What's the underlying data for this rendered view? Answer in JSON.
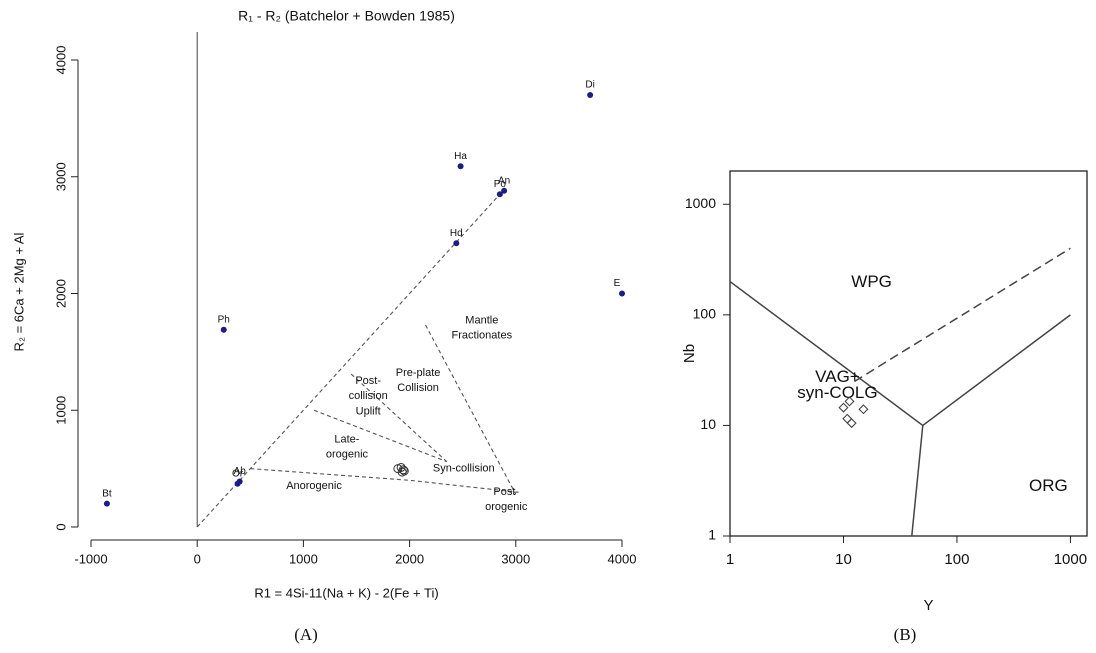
{
  "chart_data": [
    {
      "type": "scatter",
      "title": "R₁ - R₂ (Batchelor + Bowden 1985)",
      "xlabel": "R1 = 4Si-11(Na + K) - 2(Fe + Ti)",
      "ylabel": "R₂ = 6Ca + 2Mg + Al",
      "caption": "(A)",
      "xlim": [
        -1000,
        4000
      ],
      "ylim": [
        0,
        4000
      ],
      "xticks": [
        -1000,
        0,
        1000,
        2000,
        3000,
        4000
      ],
      "yticks": [
        0,
        1000,
        2000,
        3000,
        4000
      ],
      "xline": 0,
      "points": {
        "color": "#1c1c8a",
        "labels": [
          "Bt",
          "Ph",
          "Ab",
          "Or",
          "Hd",
          "Ha",
          "Po",
          "An",
          "Di",
          "E"
        ],
        "x": [
          -850,
          250,
          400,
          380,
          2440,
          2480,
          2850,
          2890,
          3700,
          4000
        ],
        "y": [
          200,
          1690,
          390,
          370,
          2430,
          3090,
          2850,
          2880,
          3700,
          2000
        ]
      },
      "samples": {
        "x": [
          1890,
          1920,
          1940,
          1950,
          1930
        ],
        "y": [
          500,
          510,
          490,
          480,
          470
        ]
      },
      "lines": [
        {
          "x": [
            0,
            2850
          ],
          "y": [
            0,
            2850
          ]
        },
        {
          "x": [
            500,
            2000,
            3000
          ],
          "y": [
            500,
            400,
            300
          ]
        },
        {
          "x": [
            1100,
            2350
          ],
          "y": [
            1000,
            560
          ]
        },
        {
          "x": [
            1450,
            2350
          ],
          "y": [
            1310,
            560
          ]
        },
        {
          "x": [
            2150,
            3000
          ],
          "y": [
            1730,
            280
          ]
        }
      ],
      "annotations": [
        {
          "text": "Mantle",
          "x": 2680,
          "y": 1770
        },
        {
          "text": "Fractionates",
          "x": 2680,
          "y": 1640
        },
        {
          "text": "Pre-plate",
          "x": 2080,
          "y": 1320
        },
        {
          "text": "Collision",
          "x": 2080,
          "y": 1190
        },
        {
          "text": "Post-",
          "x": 1610,
          "y": 1250
        },
        {
          "text": "collision",
          "x": 1610,
          "y": 1120
        },
        {
          "text": "Uplift",
          "x": 1610,
          "y": 990
        },
        {
          "text": "Late-",
          "x": 1410,
          "y": 750
        },
        {
          "text": "orogenic",
          "x": 1410,
          "y": 620
        },
        {
          "text": "Syn-collision",
          "x": 2510,
          "y": 500
        },
        {
          "text": "Anorogenic",
          "x": 1100,
          "y": 350
        },
        {
          "text": "Post-",
          "x": 2910,
          "y": 300
        },
        {
          "text": "orogenic",
          "x": 2910,
          "y": 170
        }
      ]
    },
    {
      "type": "scatter",
      "log": true,
      "xlabel": "Y",
      "ylabel": "Nb",
      "caption": "(B)",
      "xlim": [
        1,
        1400
      ],
      "ylim": [
        1,
        2000
      ],
      "xticks": [
        1,
        10,
        100,
        1000
      ],
      "yticks": [
        1,
        10,
        100,
        1000
      ],
      "samples": {
        "x": [
          11.3,
          10,
          15,
          10.8,
          11.8
        ],
        "y": [
          16.5,
          14.5,
          14,
          11.5,
          10.5
        ]
      },
      "lines": [
        {
          "x": [
            1,
            50,
            1000
          ],
          "y": [
            200,
            10,
            100
          ]
        },
        {
          "x": [
            50,
            40
          ],
          "y": [
            10,
            1
          ]
        },
        {
          "x": [
            12.5,
            1000
          ],
          "y": [
            25,
            400
          ],
          "dashed": true
        }
      ],
      "annotations": [
        {
          "text": "WPG",
          "x": 17.7,
          "y": 197
        },
        {
          "text": "VAG+",
          "x": 8.85,
          "y": 27
        },
        {
          "text": "syn-COLG",
          "x": 8.85,
          "y": 19.4
        },
        {
          "text": "ORG",
          "x": 640,
          "y": 2.8
        }
      ]
    }
  ]
}
